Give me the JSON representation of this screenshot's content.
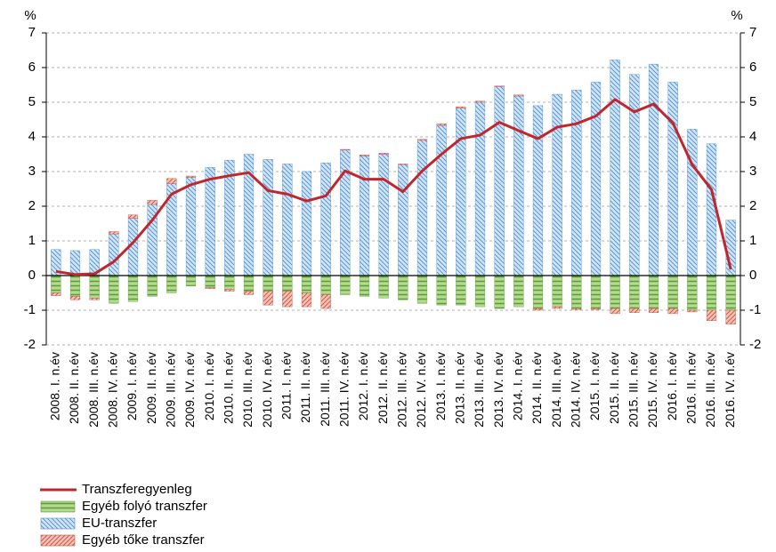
{
  "chart_data": {
    "type": "bar",
    "y_axis_label": "%",
    "y2_axis_label": "%",
    "categories": [
      "2008. I. n.év",
      "2008. II. n.év",
      "2008. III. n.év",
      "2008. IV. n.év",
      "2009. I. n.év",
      "2009. II. n.év",
      "2009. III. n.év",
      "2009. IV. n.év",
      "2010. I. n.év",
      "2010. II. n.év",
      "2010. III. n.év",
      "2010. IV. n.év",
      "2011. I. n.év",
      "2011. II. n.év",
      "2011. III. n.év",
      "2011. IV. n.év",
      "2012. I. n.év",
      "2012. II. n.év",
      "2012. III. n.év",
      "2012. IV. n.év",
      "2013. I. n.év",
      "2013. II. n.év",
      "2013. III. n.év",
      "2013. IV. n.év",
      "2014. I. n.év",
      "2014. II. n.év",
      "2014. III. n.év",
      "2014. IV. n.év",
      "2015. I. n.év",
      "2015. II. n.év",
      "2015. III. n.év",
      "2015. IV. n.év",
      "2016. I. n.év",
      "2016. II. n.év",
      "2016. III. n.év",
      "2016. IV. n.év"
    ],
    "series": [
      {
        "name": "Transzferegyenleg",
        "type": "line",
        "color": "#c0272d",
        "values": [
          0.12,
          0.03,
          0.05,
          0.4,
          0.95,
          1.6,
          2.35,
          2.62,
          2.78,
          2.88,
          2.97,
          2.45,
          2.35,
          2.15,
          2.3,
          3.02,
          2.78,
          2.78,
          2.42,
          3.02,
          3.5,
          3.95,
          4.05,
          4.42,
          4.18,
          3.95,
          4.28,
          4.38,
          4.6,
          5.08,
          4.72,
          4.95,
          4.4,
          3.2,
          2.48,
          0.18
        ]
      },
      {
        "name": "Egyéb folyó transzfer",
        "type": "bar",
        "color": "#5e9e3a",
        "fill": "#b5d98f",
        "hatch": "horizontal",
        "values": [
          -0.5,
          -0.6,
          -0.65,
          -0.8,
          -0.75,
          -0.6,
          -0.5,
          -0.3,
          -0.35,
          -0.4,
          -0.45,
          -0.45,
          -0.45,
          -0.5,
          -0.55,
          -0.55,
          -0.6,
          -0.65,
          -0.7,
          -0.8,
          -0.85,
          -0.85,
          -0.9,
          -0.95,
          -0.9,
          -0.95,
          -0.9,
          -0.95,
          -0.95,
          -0.95,
          -0.95,
          -0.95,
          -0.95,
          -1.0,
          -1.0,
          -1.0
        ]
      },
      {
        "name": "EU-transzfer",
        "type": "bar",
        "color": "#4f8ccb",
        "fill": "#cfe4f7",
        "hatch": "back-diagonal",
        "values": [
          0.75,
          0.72,
          0.75,
          1.2,
          1.65,
          2.05,
          2.65,
          2.83,
          3.12,
          3.33,
          3.5,
          3.35,
          3.22,
          3.0,
          3.25,
          3.62,
          3.45,
          3.5,
          3.2,
          3.9,
          4.33,
          4.83,
          5.0,
          5.45,
          5.18,
          4.9,
          5.23,
          5.35,
          5.58,
          6.22,
          5.8,
          6.1,
          5.58,
          4.22,
          3.8,
          1.6
        ]
      },
      {
        "name": "Egyéb tőke transzfer",
        "type": "bar",
        "color": "#c0504d",
        "fill": "#f5c0ae",
        "hatch": "diagonal",
        "values": [
          -0.08,
          -0.1,
          -0.05,
          0.07,
          0.1,
          0.12,
          0.15,
          0.04,
          -0.03,
          -0.05,
          -0.1,
          -0.4,
          -0.45,
          -0.4,
          -0.4,
          0.02,
          0.03,
          0.03,
          0.02,
          0.03,
          0.05,
          0.04,
          0.03,
          0.02,
          0.03,
          -0.05,
          -0.05,
          -0.03,
          -0.03,
          -0.15,
          -0.12,
          -0.12,
          -0.15,
          -0.05,
          -0.3,
          -0.4
        ]
      }
    ],
    "ylim": [
      -2,
      7
    ],
    "yticks": [
      -2,
      -1,
      0,
      1,
      2,
      3,
      4,
      5,
      6,
      7
    ],
    "y2lim": [
      -2,
      7
    ],
    "y2ticks": [
      -2,
      -1,
      0,
      1,
      2,
      3,
      4,
      5,
      6,
      7
    ],
    "grid": true,
    "legend": "bottom-left"
  }
}
